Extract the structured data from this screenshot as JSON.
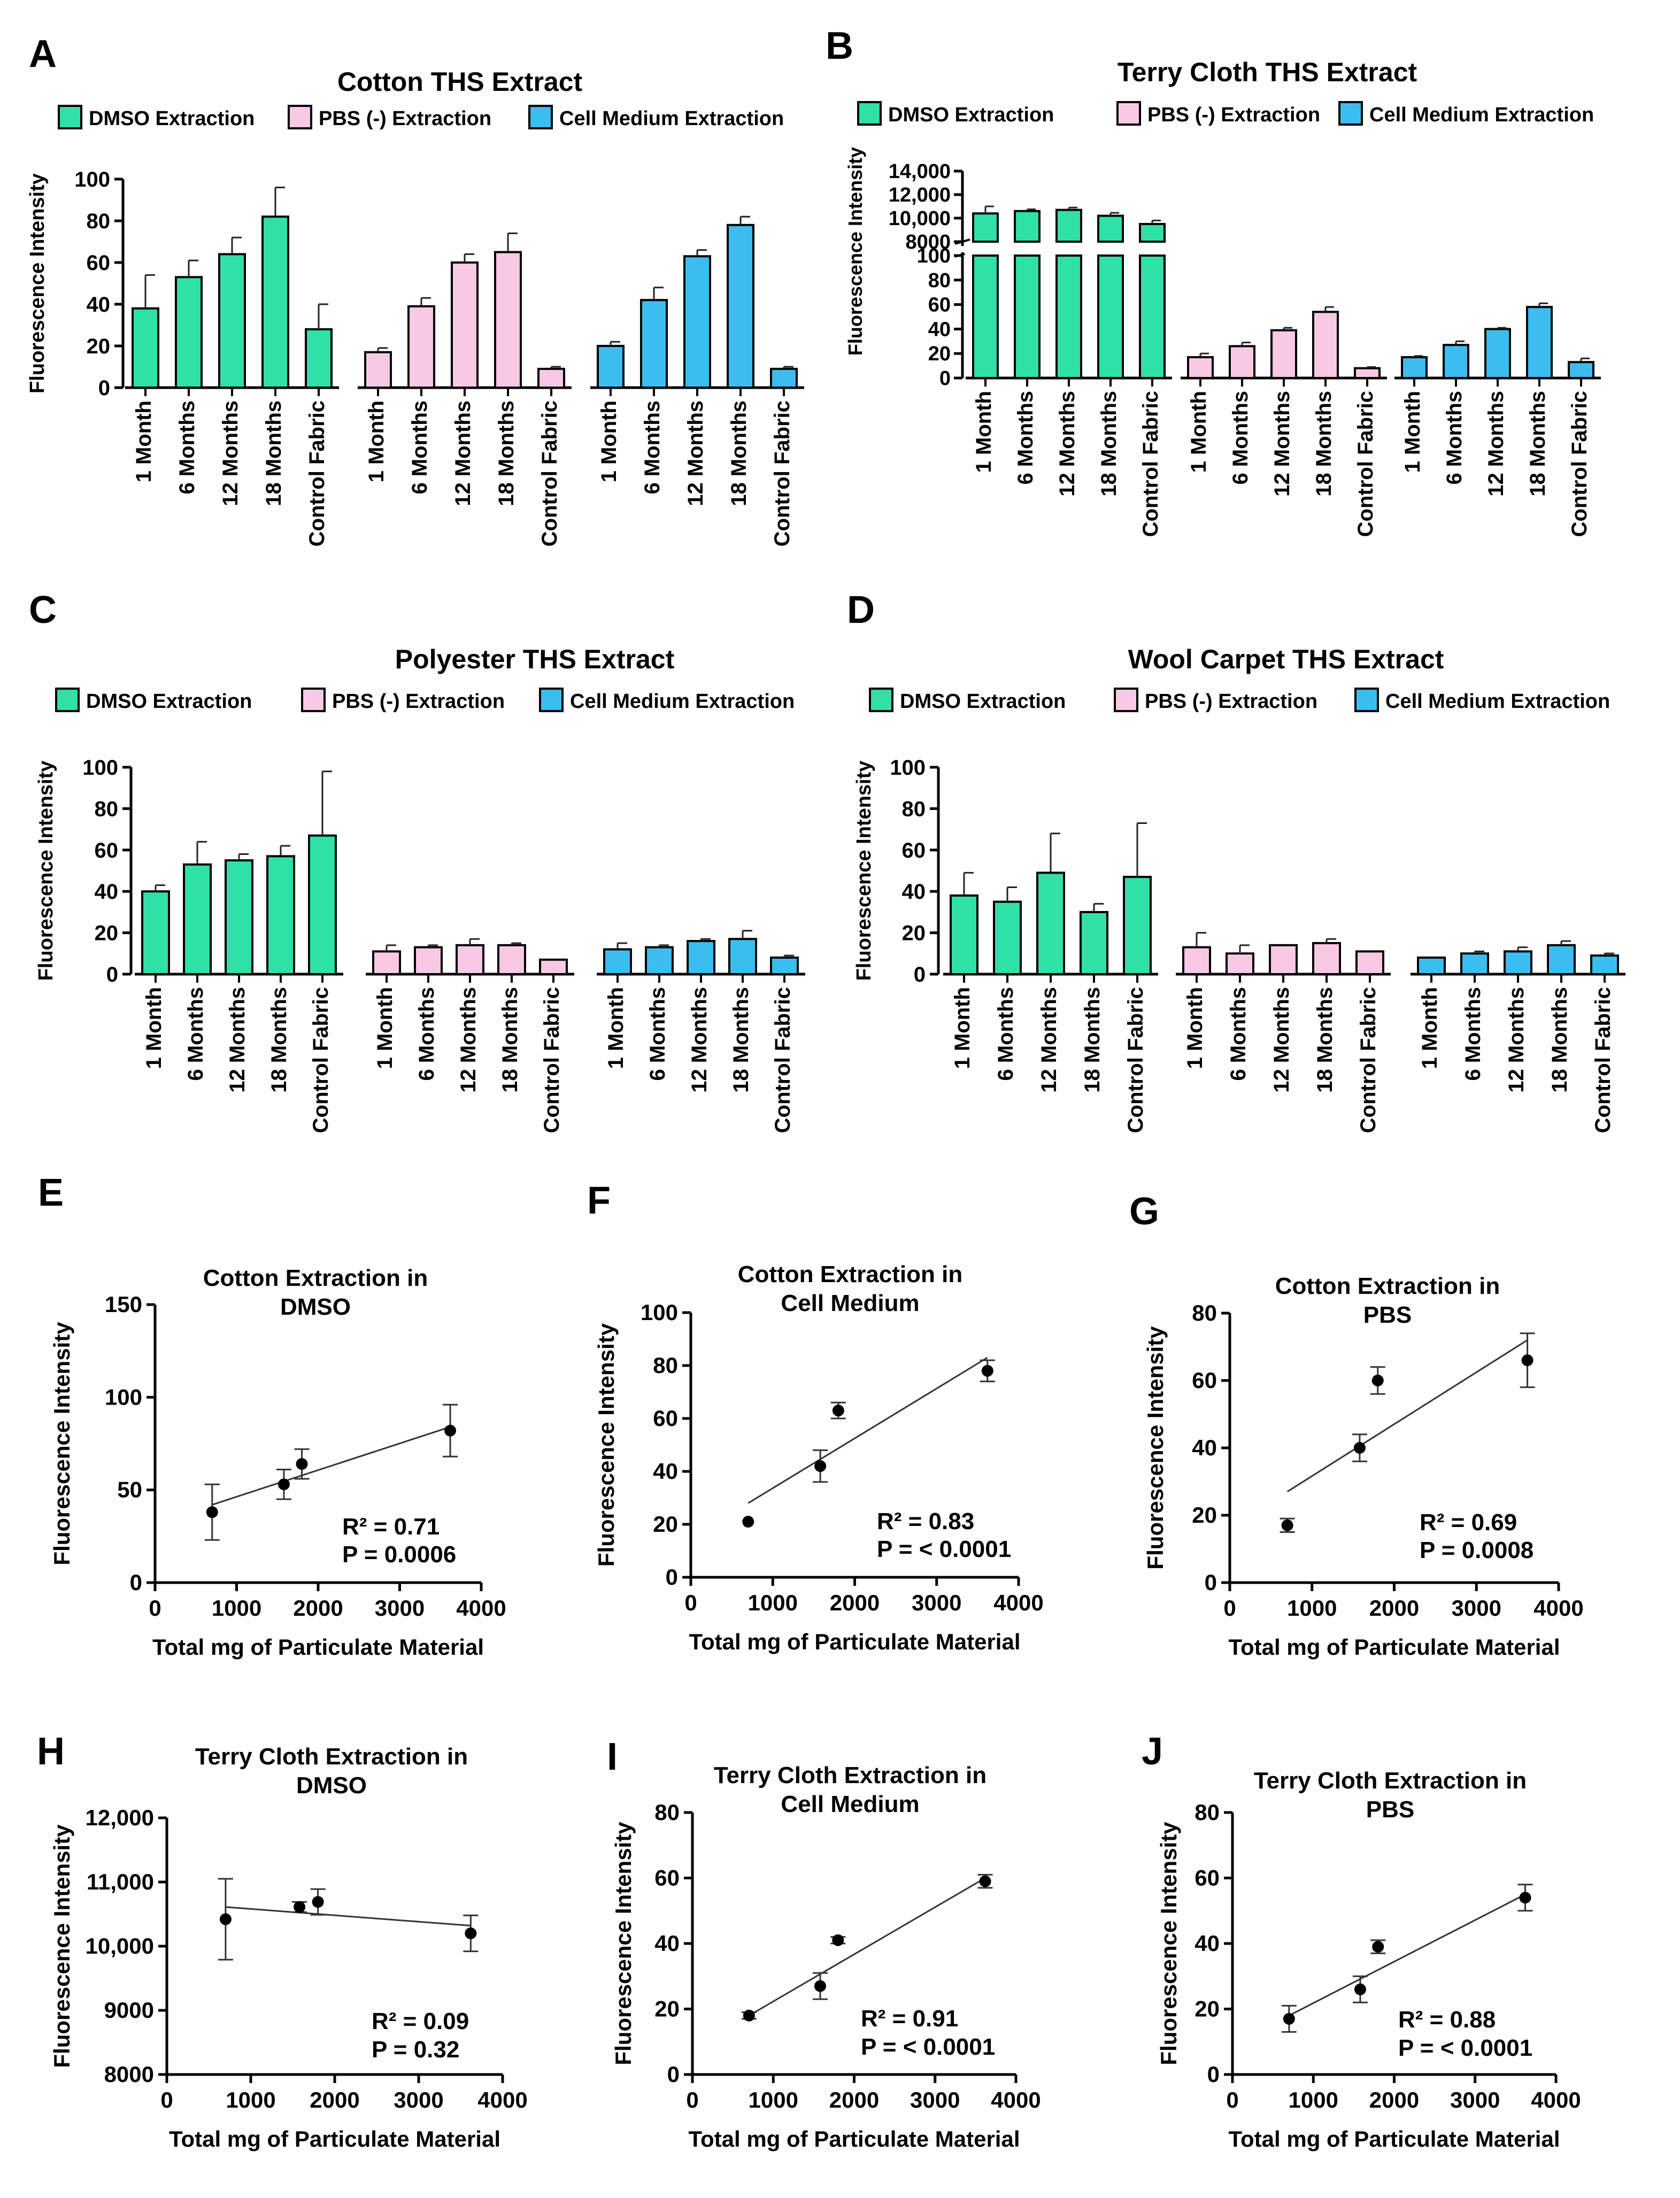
{
  "figure": {
    "description_free": true
  },
  "chart_data": [
    {
      "id": "A",
      "type": "bar",
      "panel_letter": "A",
      "title": "Cotton THS Extract",
      "ylabel": "Fluorescence Intensity",
      "xlabel": "",
      "yticks": [
        0,
        20,
        40,
        60,
        80,
        100
      ],
      "ytick_labels": [
        "0",
        "20",
        "40",
        "60",
        "80",
        "100"
      ],
      "ylim": [
        0,
        100
      ],
      "categories": [
        "1 Month",
        "6 Months",
        "12 Months",
        "18 Months",
        "Control Fabric"
      ],
      "legend_position": "top",
      "series": [
        {
          "name": "DMSO  Extraction",
          "color": "#2fe0a8",
          "values": [
            38,
            53,
            64,
            82,
            28
          ],
          "errors": [
            16,
            8,
            8,
            14,
            12
          ]
        },
        {
          "name": "PBS (-) Extraction",
          "color": "#f9c8e4",
          "values": [
            17,
            39,
            60,
            65,
            9
          ],
          "errors": [
            2,
            4,
            4,
            9,
            1
          ]
        },
        {
          "name": "Cell Medium Extraction",
          "color": "#3cbdf0",
          "values": [
            20,
            42,
            63,
            78,
            9
          ],
          "errors": [
            2,
            6,
            3,
            4,
            1
          ]
        }
      ]
    },
    {
      "id": "B",
      "type": "bar",
      "panel_letter": "B",
      "title": "Terry Cloth THS Extract",
      "ylabel": "Fluorescence Intensity",
      "xlabel": "",
      "broken_axis": true,
      "yticks_upper": [
        8000,
        10000,
        12000,
        14000
      ],
      "ytick_labels_upper": [
        "8000",
        "10,000",
        "12,000",
        "14,000"
      ],
      "yticks": [
        0,
        20,
        40,
        60,
        80,
        100
      ],
      "ytick_labels": [
        "0",
        "20",
        "40",
        "60",
        "80",
        "100"
      ],
      "ylim": [
        0,
        100
      ],
      "categories": [
        "1 Month",
        "6 Months",
        "12 Months",
        "18 Months",
        "Control Fabric"
      ],
      "legend_position": "top",
      "series": [
        {
          "name": "DMSO  Extraction",
          "color": "#2fe0a8",
          "values": [
            10400,
            10600,
            10700,
            10200,
            9500
          ],
          "errors": [
            600,
            150,
            200,
            250,
            300
          ]
        },
        {
          "name": "PBS (-) Extraction",
          "color": "#f9c8e4",
          "values": [
            17,
            26,
            39,
            54,
            8
          ],
          "errors": [
            3,
            3,
            2,
            4,
            1
          ]
        },
        {
          "name": "Cell Medium Extraction",
          "color": "#3cbdf0",
          "values": [
            17,
            27,
            40,
            58,
            13
          ],
          "errors": [
            1,
            3,
            1,
            3,
            3
          ]
        }
      ]
    },
    {
      "id": "C",
      "type": "bar",
      "panel_letter": "C",
      "title": "Polyester THS Extract",
      "ylabel": "Fluorescence Intensity",
      "xlabel": "",
      "yticks": [
        0,
        20,
        40,
        60,
        80,
        100
      ],
      "ytick_labels": [
        "0",
        "20",
        "40",
        "60",
        "80",
        "100"
      ],
      "ylim": [
        0,
        100
      ],
      "categories": [
        "1 Month",
        "6 Months",
        "12 Months",
        "18 Months",
        "Control Fabric"
      ],
      "legend_position": "top",
      "series": [
        {
          "name": "DMSO  Extraction",
          "color": "#2fe0a8",
          "values": [
            40,
            53,
            55,
            57,
            67
          ],
          "errors": [
            3,
            11,
            3,
            5,
            31
          ]
        },
        {
          "name": "PBS (-) Extraction",
          "color": "#f9c8e4",
          "values": [
            11,
            13,
            14,
            14,
            7
          ],
          "errors": [
            3,
            1,
            3,
            1,
            0
          ]
        },
        {
          "name": "Cell Medium Extraction",
          "color": "#3cbdf0",
          "values": [
            12,
            13,
            16,
            17,
            8
          ],
          "errors": [
            3,
            1,
            1,
            4,
            1
          ]
        }
      ]
    },
    {
      "id": "D",
      "type": "bar",
      "panel_letter": "D",
      "title": "Wool Carpet THS Extract",
      "ylabel": "Fluorescence Intensity",
      "xlabel": "",
      "yticks": [
        0,
        20,
        40,
        60,
        80,
        100
      ],
      "ytick_labels": [
        "0",
        "20",
        "40",
        "60",
        "80",
        "100"
      ],
      "ylim": [
        0,
        100
      ],
      "categories": [
        "1 Month",
        "6 Months",
        "12 Months",
        "18 Months",
        "Control Fabric"
      ],
      "legend_position": "top",
      "series": [
        {
          "name": "DMSO  Extraction",
          "color": "#2fe0a8",
          "values": [
            38,
            35,
            49,
            30,
            47
          ],
          "errors": [
            11,
            7,
            19,
            4,
            26
          ]
        },
        {
          "name": "PBS (-) Extraction",
          "color": "#f9c8e4",
          "values": [
            13,
            10,
            14,
            15,
            11
          ],
          "errors": [
            7,
            4,
            0,
            2,
            0
          ]
        },
        {
          "name": "Cell Medium Extraction",
          "color": "#3cbdf0",
          "values": [
            8,
            10,
            11,
            14,
            9
          ],
          "errors": [
            0,
            1,
            2,
            2,
            1
          ]
        }
      ]
    },
    {
      "id": "E",
      "type": "scatter",
      "panel_letter": "E",
      "title_lines": [
        "Cotton Extraction in",
        "DMSO"
      ],
      "xlabel": "Total mg of Particulate Material",
      "ylabel": "Fluorescence Intensity",
      "xlim": [
        0,
        4000
      ],
      "xticks": [
        0,
        1000,
        2000,
        3000,
        4000
      ],
      "xtick_labels": [
        "0",
        "1000",
        "2000",
        "3000",
        "4000"
      ],
      "ylim": [
        0,
        150
      ],
      "yticks": [
        0,
        50,
        100,
        150
      ],
      "ytick_labels": [
        "0",
        "50",
        "100",
        "150"
      ],
      "x": [
        700,
        1580,
        1800,
        3620
      ],
      "y": [
        38,
        53,
        64,
        82
      ],
      "errors": [
        15,
        8,
        8,
        14
      ],
      "fit": {
        "x": [
          700,
          3620
        ],
        "y": [
          42,
          84
        ]
      },
      "stats_lines": [
        "R² = 0.71",
        "P = 0.0006"
      ]
    },
    {
      "id": "F",
      "type": "scatter",
      "panel_letter": "F",
      "title_lines": [
        "Cotton Extraction in",
        "Cell Medium"
      ],
      "xlabel": "Total mg of Particulate Material",
      "ylabel": "Fluorescence Intensity",
      "xlim": [
        0,
        4000
      ],
      "xticks": [
        0,
        1000,
        2000,
        3000,
        4000
      ],
      "xtick_labels": [
        "0",
        "1000",
        "2000",
        "3000",
        "4000"
      ],
      "ylim": [
        0,
        100
      ],
      "yticks": [
        0,
        20,
        40,
        60,
        80,
        100
      ],
      "ytick_labels": [
        "0",
        "20",
        "40",
        "60",
        "80",
        "100"
      ],
      "x": [
        700,
        1580,
        1800,
        3620
      ],
      "y": [
        21,
        42,
        63,
        78
      ],
      "errors": [
        0,
        6,
        3,
        4
      ],
      "fit": {
        "x": [
          700,
          3620
        ],
        "y": [
          28,
          83
        ]
      },
      "stats_lines": [
        "R² = 0.83",
        "P = < 0.0001"
      ]
    },
    {
      "id": "G",
      "type": "scatter",
      "panel_letter": "G",
      "title_lines": [
        "Cotton Extraction in",
        "PBS"
      ],
      "xlabel": "Total mg of Particulate Material",
      "ylabel": "Fluorescence Intensity",
      "xlim": [
        0,
        4000
      ],
      "xticks": [
        0,
        1000,
        2000,
        3000,
        4000
      ],
      "xtick_labels": [
        "0",
        "1000",
        "2000",
        "3000",
        "4000"
      ],
      "ylim": [
        0,
        80
      ],
      "yticks": [
        0,
        20,
        40,
        60,
        80
      ],
      "ytick_labels": [
        "0",
        "20",
        "40",
        "60",
        "80"
      ],
      "x": [
        700,
        1580,
        1800,
        3620
      ],
      "y": [
        17,
        40,
        60,
        66
      ],
      "errors": [
        2,
        4,
        4,
        8
      ],
      "fit": {
        "x": [
          700,
          3620
        ],
        "y": [
          27,
          72
        ]
      },
      "stats_lines": [
        "R² = 0.69",
        "P = 0.0008"
      ]
    },
    {
      "id": "H",
      "type": "scatter",
      "panel_letter": "H",
      "title_lines": [
        "Terry Cloth Extraction in",
        "DMSO"
      ],
      "xlabel": "Total mg of Particulate Material",
      "ylabel": "Fluorescence Intensity",
      "xlim": [
        0,
        4000
      ],
      "xticks": [
        0,
        1000,
        2000,
        3000,
        4000
      ],
      "xtick_labels": [
        "0",
        "1000",
        "2000",
        "3000",
        "4000"
      ],
      "ylim": [
        8000,
        12000
      ],
      "yticks": [
        8000,
        9000,
        10000,
        11000,
        12000
      ],
      "ytick_labels": [
        "8000",
        "9000",
        "10,000",
        "11,000",
        "12,000"
      ],
      "x": [
        700,
        1580,
        1800,
        3620
      ],
      "y": [
        10420,
        10610,
        10690,
        10200
      ],
      "errors": [
        630,
        80,
        200,
        280
      ],
      "fit": {
        "x": [
          700,
          3620
        ],
        "y": [
          10610,
          10320
        ]
      },
      "stats_lines": [
        "R² = 0.09",
        "P = 0.32"
      ]
    },
    {
      "id": "I",
      "type": "scatter",
      "panel_letter": "I",
      "title_lines": [
        "Terry Cloth Extraction in",
        "Cell Medium"
      ],
      "xlabel": "Total mg of Particulate Material",
      "ylabel": "Fluorescence Intensity",
      "xlim": [
        0,
        4000
      ],
      "xticks": [
        0,
        1000,
        2000,
        3000,
        4000
      ],
      "xtick_labels": [
        "0",
        "1000",
        "2000",
        "3000",
        "4000"
      ],
      "ylim": [
        0,
        80
      ],
      "yticks": [
        0,
        20,
        40,
        60,
        80
      ],
      "ytick_labels": [
        "0",
        "20",
        "40",
        "60",
        "80"
      ],
      "x": [
        700,
        1580,
        1800,
        3620
      ],
      "y": [
        18,
        27,
        41,
        59
      ],
      "errors": [
        1,
        4,
        1,
        2
      ],
      "fit": {
        "x": [
          700,
          3620
        ],
        "y": [
          18,
          60
        ]
      },
      "stats_lines": [
        "R² = 0.91",
        "P = < 0.0001"
      ]
    },
    {
      "id": "J",
      "type": "scatter",
      "panel_letter": "J",
      "title_lines": [
        "Terry Cloth Extraction in",
        "PBS"
      ],
      "xlabel": "Total mg of Particulate Material",
      "ylabel": "Fluorescence Intensity",
      "xlim": [
        0,
        4000
      ],
      "xticks": [
        0,
        1000,
        2000,
        3000,
        4000
      ],
      "xtick_labels": [
        "0",
        "1000",
        "2000",
        "3000",
        "4000"
      ],
      "ylim": [
        0,
        80
      ],
      "yticks": [
        0,
        20,
        40,
        60,
        80
      ],
      "ytick_labels": [
        "0",
        "20",
        "40",
        "60",
        "80"
      ],
      "x": [
        700,
        1580,
        1800,
        3620
      ],
      "y": [
        17,
        26,
        39,
        54
      ],
      "errors": [
        4,
        4,
        2,
        4
      ],
      "fit": {
        "x": [
          700,
          3620
        ],
        "y": [
          18,
          55
        ]
      },
      "stats_lines": [
        "R² = 0.88",
        "P = <  0.0001"
      ]
    }
  ]
}
